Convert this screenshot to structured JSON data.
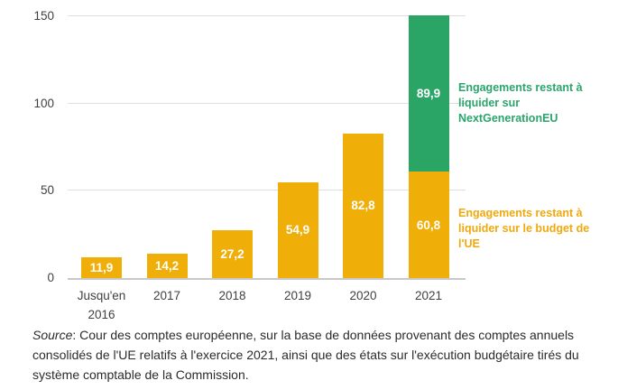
{
  "chart_data": {
    "type": "bar",
    "stacked": true,
    "categories": [
      "Jusqu'en\n2016",
      "2017",
      "2018",
      "2019",
      "2020",
      "2021"
    ],
    "series": [
      {
        "name": "Engagements restant à liquider sur le budget de l'UE",
        "color": "#efae08",
        "values": [
          11.9,
          14.2,
          27.2,
          54.9,
          82.8,
          60.8
        ],
        "value_labels": [
          "11,9",
          "14,2",
          "27,2",
          "54,9",
          "82,8",
          "60,8"
        ]
      },
      {
        "name": "Engagements restant à liquider sur NextGenerationEU",
        "color": "#2aa566",
        "values": [
          0,
          0,
          0,
          0,
          0,
          89.9
        ],
        "value_labels": [
          "",
          "",
          "",
          "",
          "",
          "89,9"
        ]
      }
    ],
    "ylim": [
      0,
      150
    ],
    "yticks": [
      0,
      50,
      100,
      150
    ],
    "ytick_labels": [
      "0",
      "50",
      "100",
      "150"
    ],
    "grid": true,
    "legend_position": "right",
    "value_label_color": "#ffffff"
  },
  "legend": {
    "ngeu": {
      "text": "Engagements restant à liquider sur NextGenerationEU",
      "color": "#2aa56b"
    },
    "budget": {
      "text": "Engagements restant à liquider sur le budget de l'UE",
      "color": "#f0a90c"
    }
  },
  "source_note": {
    "label": "Source",
    "text": ": Cour des comptes européenne, sur la base de données provenant des comptes annuels consolidés de l'UE relatifs à l'exercice 2021, ainsi que des états sur l'exécution budgétaire tirés du système comptable de la Commission."
  }
}
